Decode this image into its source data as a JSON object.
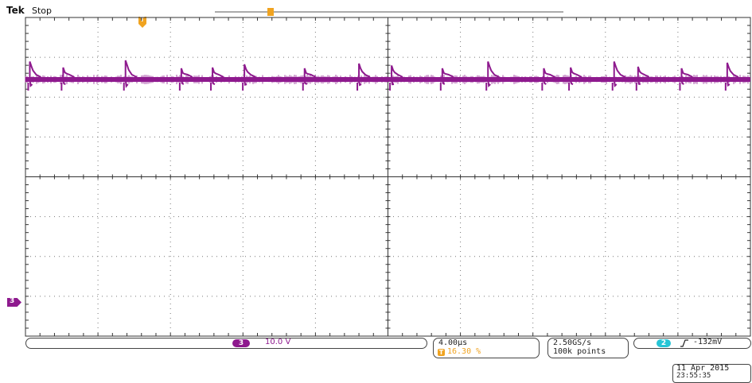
{
  "header": {
    "brand": "Tek",
    "acq_state": "Stop"
  },
  "channel": {
    "number": "3",
    "marker": "3",
    "scale": "10.0 V",
    "color": "#8e1a8e"
  },
  "trigger_position_marker": "T",
  "timebase": {
    "time_per_div": "4.00µs",
    "trigger_position": "16.30 %",
    "trigger_badge": "T"
  },
  "acquisition": {
    "sample_rate": "2.50GS/s",
    "record_length": "100k points"
  },
  "trigger": {
    "source": "2",
    "slope_icon": "rising-edge-icon",
    "level": "-132mV",
    "color": "#27c5d6"
  },
  "datetime": {
    "date": "11 Apr 2015",
    "time": "23:55:35"
  },
  "colors": {
    "trace": "#8e1a8e",
    "orange": "#f0a320",
    "grid": "#777777"
  },
  "chart_data": {
    "type": "line",
    "title": "",
    "xlabel": "",
    "ylabel": "",
    "x_divisions": 10,
    "y_divisions": 8,
    "xlim": [
      0,
      10
    ],
    "ylim": [
      -4,
      4
    ],
    "grid": true,
    "series": [
      {
        "baseline_div": 2.65,
        "spikes": [
          {
            "x": 0.06,
            "h": 0.45
          },
          {
            "x": 0.52,
            "h": 0.3
          },
          {
            "x": 1.38,
            "h": 0.48
          },
          {
            "x": 2.15,
            "h": 0.28
          },
          {
            "x": 2.58,
            "h": 0.3
          },
          {
            "x": 3.02,
            "h": 0.38
          },
          {
            "x": 3.85,
            "h": 0.28
          },
          {
            "x": 4.6,
            "h": 0.4
          },
          {
            "x": 5.05,
            "h": 0.35
          },
          {
            "x": 5.75,
            "h": 0.28
          },
          {
            "x": 6.38,
            "h": 0.45
          },
          {
            "x": 7.15,
            "h": 0.28
          },
          {
            "x": 7.52,
            "h": 0.3
          },
          {
            "x": 8.12,
            "h": 0.45
          },
          {
            "x": 8.45,
            "h": 0.32
          },
          {
            "x": 9.05,
            "h": 0.28
          },
          {
            "x": 9.68,
            "h": 0.42
          }
        ]
      }
    ]
  }
}
